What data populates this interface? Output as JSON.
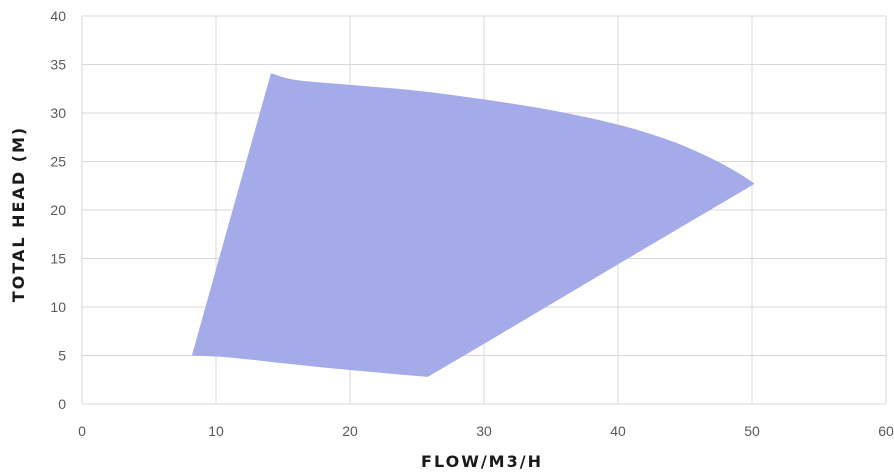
{
  "chart_data": {
    "type": "area",
    "title": "",
    "xlabel": "FLOW/M3/H",
    "ylabel": "TOTAL HEAD (M)",
    "xlim": [
      0,
      60
    ],
    "ylim": [
      0,
      40
    ],
    "xticks": [
      "0",
      "10",
      "20",
      "30",
      "40",
      "50",
      "60"
    ],
    "yticks": [
      "0",
      "5",
      "10",
      "15",
      "20",
      "25",
      "30",
      "35",
      "40"
    ],
    "grid": true,
    "legend": "none",
    "fill_color": "#a4abe8",
    "series": [
      {
        "values": [
          {
            "x": 8.2,
            "y": 5.0
          },
          {
            "x": 14.1,
            "y": 34.1
          },
          {
            "x": 16.0,
            "y": 33.4
          },
          {
            "x": 20.0,
            "y": 32.9
          },
          {
            "x": 25.0,
            "y": 32.3
          },
          {
            "x": 30.0,
            "y": 31.4
          },
          {
            "x": 35.0,
            "y": 30.3
          },
          {
            "x": 40.0,
            "y": 28.8
          },
          {
            "x": 44.0,
            "y": 27.1
          },
          {
            "x": 47.0,
            "y": 25.3
          },
          {
            "x": 49.0,
            "y": 23.8
          },
          {
            "x": 50.2,
            "y": 22.7
          },
          {
            "x": 40.0,
            "y": 14.4
          },
          {
            "x": 30.0,
            "y": 6.2
          },
          {
            "x": 25.8,
            "y": 2.8
          },
          {
            "x": 20.0,
            "y": 3.5
          },
          {
            "x": 15.0,
            "y": 4.2
          },
          {
            "x": 11.0,
            "y": 4.8
          },
          {
            "x": 8.2,
            "y": 5.0
          }
        ]
      }
    ]
  }
}
